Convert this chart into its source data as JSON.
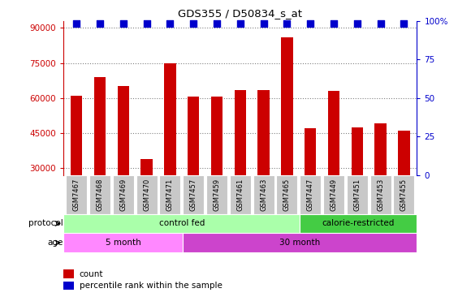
{
  "title": "GDS355 / D50834_s_at",
  "samples": [
    "GSM7467",
    "GSM7468",
    "GSM7469",
    "GSM7470",
    "GSM7471",
    "GSM7457",
    "GSM7459",
    "GSM7461",
    "GSM7463",
    "GSM7465",
    "GSM7447",
    "GSM7449",
    "GSM7451",
    "GSM7453",
    "GSM7455"
  ],
  "counts": [
    61000,
    69000,
    65000,
    34000,
    75000,
    60500,
    60500,
    63500,
    63500,
    86000,
    47000,
    63000,
    47500,
    49000,
    46000
  ],
  "bar_color": "#cc0000",
  "dot_color": "#0000cc",
  "ylim_left": [
    27000,
    93000
  ],
  "yticks_left": [
    30000,
    45000,
    60000,
    75000,
    90000
  ],
  "ylim_right": [
    0,
    100
  ],
  "yticks_right": [
    0,
    25,
    50,
    75,
    100
  ],
  "protocol_groups": [
    {
      "label": "control fed",
      "start": 0,
      "end": 10,
      "color": "#aaffaa"
    },
    {
      "label": "calorie-restricted",
      "start": 10,
      "end": 15,
      "color": "#44cc44"
    }
  ],
  "age_groups": [
    {
      "label": "5 month",
      "start": 0,
      "end": 5,
      "color": "#ff88ff"
    },
    {
      "label": "30 month",
      "start": 5,
      "end": 15,
      "color": "#cc44cc"
    }
  ],
  "protocol_label": "protocol",
  "age_label": "age",
  "legend_count_label": "count",
  "legend_percentile_label": "percentile rank within the sample",
  "tick_label_bg": "#c8c8c8",
  "bar_width": 0.5,
  "dot_size": 30
}
